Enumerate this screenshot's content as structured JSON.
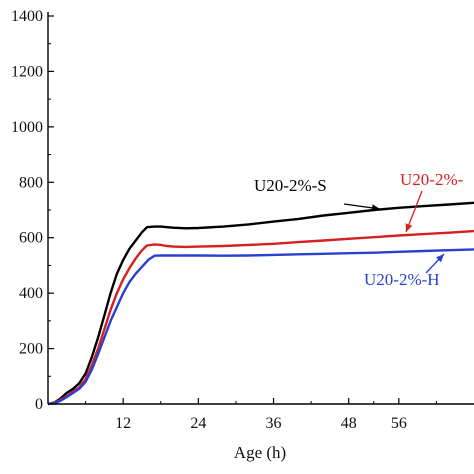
{
  "chart_data": {
    "type": "line",
    "xlabel": "Age (h)",
    "ylabel": "",
    "xlim": [
      0,
      68
    ],
    "ylim": [
      0,
      1400
    ],
    "xticks": [
      12,
      24,
      36,
      48,
      56
    ],
    "yticks": [
      0,
      200,
      400,
      600,
      800,
      1000,
      1200,
      1400
    ],
    "grid": false,
    "series": [
      {
        "name": "U20-2%-S",
        "label_text": "U20-2%-S",
        "color": "#000000",
        "points": [
          [
            0,
            0
          ],
          [
            1,
            5
          ],
          [
            2,
            20
          ],
          [
            3,
            40
          ],
          [
            4,
            55
          ],
          [
            5,
            75
          ],
          [
            6,
            110
          ],
          [
            7,
            170
          ],
          [
            8,
            240
          ],
          [
            9,
            320
          ],
          [
            10,
            400
          ],
          [
            11,
            470
          ],
          [
            12,
            520
          ],
          [
            13,
            560
          ],
          [
            14,
            590
          ],
          [
            15,
            620
          ],
          [
            15.8,
            638
          ],
          [
            17,
            640
          ],
          [
            18,
            640
          ],
          [
            19,
            638
          ],
          [
            20,
            636
          ],
          [
            22,
            634
          ],
          [
            24,
            635
          ],
          [
            28,
            640
          ],
          [
            32,
            648
          ],
          [
            36,
            658
          ],
          [
            40,
            668
          ],
          [
            44,
            680
          ],
          [
            48,
            690
          ],
          [
            52,
            700
          ],
          [
            56,
            708
          ],
          [
            60,
            714
          ],
          [
            64,
            720
          ],
          [
            68,
            726
          ]
        ]
      },
      {
        "name": "U20-2%-",
        "label_text": "U20-2%-",
        "color": "#d62020",
        "points": [
          [
            0,
            0
          ],
          [
            1,
            4
          ],
          [
            2,
            15
          ],
          [
            3,
            28
          ],
          [
            4,
            45
          ],
          [
            5,
            60
          ],
          [
            6,
            90
          ],
          [
            7,
            140
          ],
          [
            8,
            200
          ],
          [
            9,
            270
          ],
          [
            10,
            340
          ],
          [
            11,
            400
          ],
          [
            12,
            450
          ],
          [
            13,
            490
          ],
          [
            14,
            525
          ],
          [
            15,
            555
          ],
          [
            15.8,
            572
          ],
          [
            17,
            576
          ],
          [
            18,
            574
          ],
          [
            19,
            570
          ],
          [
            20,
            568
          ],
          [
            22,
            567
          ],
          [
            24,
            568
          ],
          [
            28,
            570
          ],
          [
            32,
            574
          ],
          [
            36,
            578
          ],
          [
            40,
            584
          ],
          [
            44,
            590
          ],
          [
            48,
            596
          ],
          [
            52,
            602
          ],
          [
            56,
            608
          ],
          [
            60,
            613
          ],
          [
            64,
            618
          ],
          [
            68,
            624
          ]
        ]
      },
      {
        "name": "U20-2%-H",
        "label_text": "U20-2%-H",
        "color": "#2a3fd0",
        "points": [
          [
            0,
            0
          ],
          [
            1,
            3
          ],
          [
            2,
            12
          ],
          [
            3,
            25
          ],
          [
            4,
            40
          ],
          [
            5,
            55
          ],
          [
            6,
            80
          ],
          [
            7,
            125
          ],
          [
            8,
            180
          ],
          [
            9,
            240
          ],
          [
            10,
            300
          ],
          [
            11,
            350
          ],
          [
            12,
            400
          ],
          [
            13,
            440
          ],
          [
            14,
            470
          ],
          [
            15,
            495
          ],
          [
            16,
            520
          ],
          [
            17,
            535
          ],
          [
            18,
            536
          ],
          [
            20,
            536
          ],
          [
            24,
            536
          ],
          [
            28,
            535
          ],
          [
            32,
            536
          ],
          [
            36,
            538
          ],
          [
            40,
            540
          ],
          [
            44,
            542
          ],
          [
            48,
            544
          ],
          [
            52,
            546
          ],
          [
            56,
            549
          ],
          [
            60,
            552
          ],
          [
            64,
            555
          ],
          [
            68,
            558
          ]
        ]
      }
    ]
  }
}
